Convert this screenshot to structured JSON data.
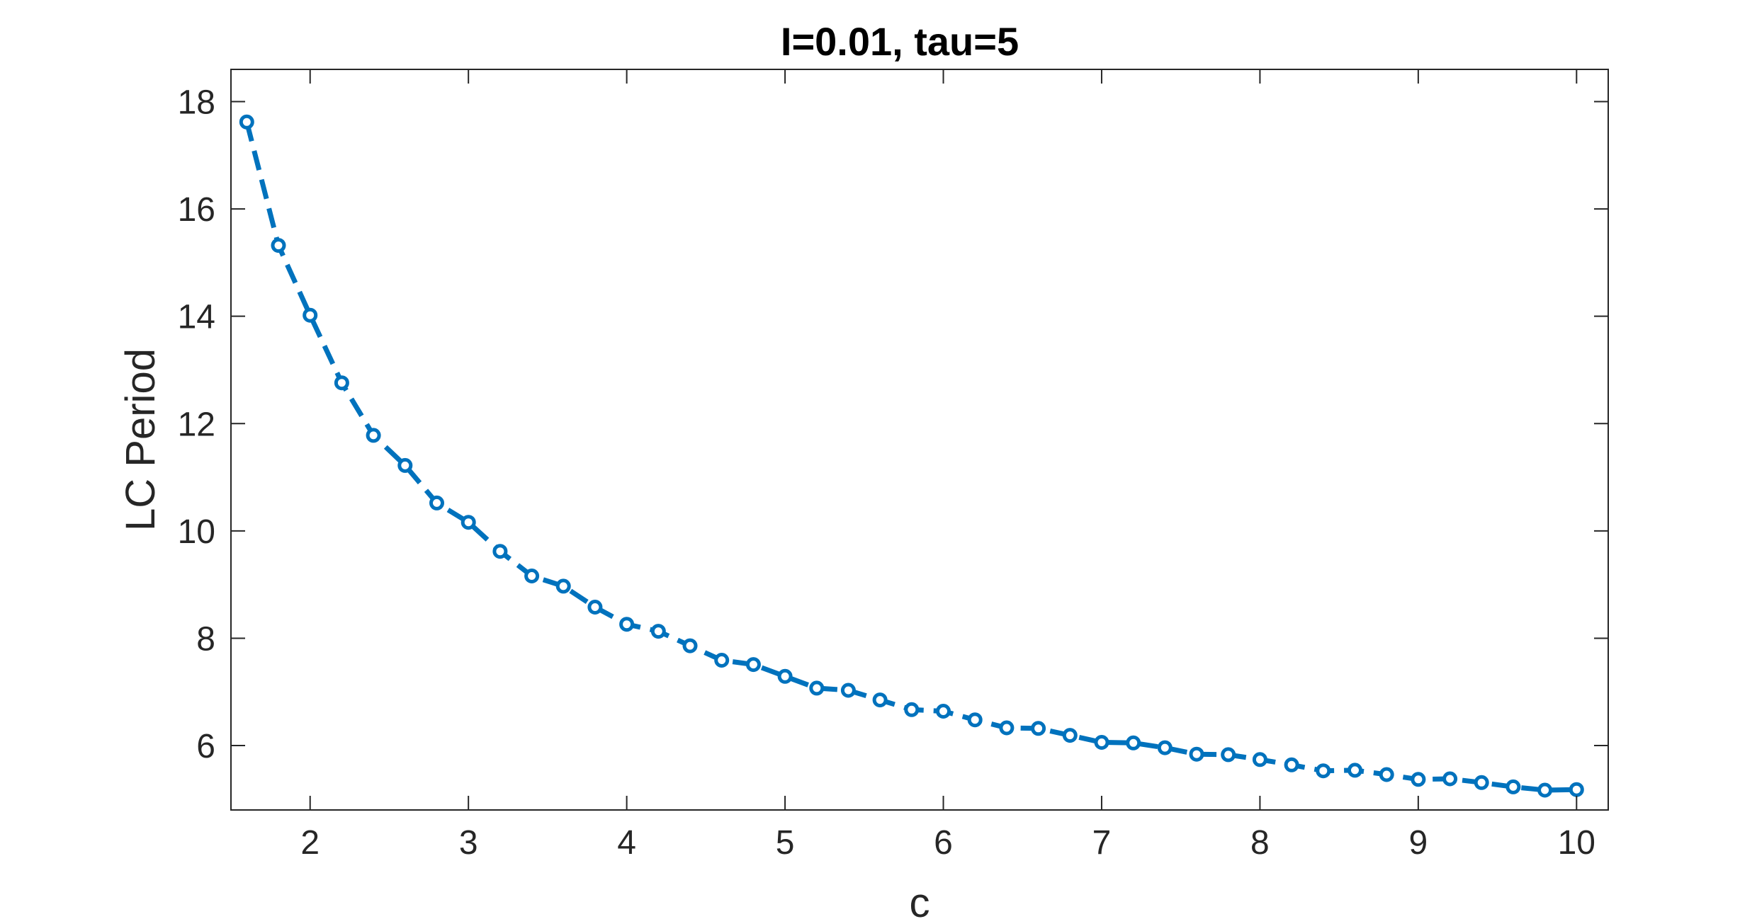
{
  "chart_data": {
    "type": "line",
    "title": "I=0.01, tau=5",
    "xlabel": "c",
    "ylabel": "LC Period",
    "xlim": [
      1.5,
      10.2
    ],
    "ylim": [
      4.8,
      18.6
    ],
    "xticks": [
      2,
      3,
      4,
      5,
      6,
      7,
      8,
      9,
      10
    ],
    "yticks": [
      6,
      8,
      10,
      12,
      14,
      16,
      18
    ],
    "grid": false,
    "line_style": "dashed",
    "marker": "circle",
    "color": "#0072BD",
    "series": [
      {
        "x": [
          1.6,
          1.8,
          2.0,
          2.2,
          2.4,
          2.6,
          2.8,
          3.0,
          3.2,
          3.4,
          3.6,
          3.8,
          4.0,
          4.2,
          4.4,
          4.6,
          4.8,
          5.0,
          5.2,
          5.4,
          5.6,
          5.8,
          6.0,
          6.2,
          6.4,
          6.6,
          6.8,
          7.0,
          7.2,
          7.4,
          7.6,
          7.8,
          8.0,
          8.2,
          8.4,
          8.6,
          8.8,
          9.0,
          9.2,
          9.4,
          9.6,
          9.8,
          10.0
        ],
        "values": [
          17.62,
          15.32,
          14.02,
          12.76,
          11.78,
          11.22,
          10.52,
          10.16,
          9.62,
          9.16,
          8.97,
          8.58,
          8.26,
          8.13,
          7.86,
          7.59,
          7.51,
          7.29,
          7.07,
          7.03,
          6.85,
          6.67,
          6.64,
          6.48,
          6.33,
          6.32,
          6.19,
          6.06,
          6.05,
          5.96,
          5.84,
          5.83,
          5.74,
          5.64,
          5.53,
          5.54,
          5.46,
          5.37,
          5.38,
          5.31,
          5.23,
          5.17,
          5.18
        ]
      }
    ]
  }
}
